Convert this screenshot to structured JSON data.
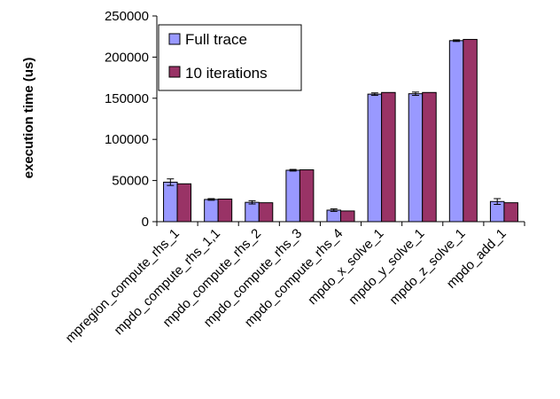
{
  "chart_data": {
    "type": "bar",
    "title": "",
    "xlabel": "",
    "ylabel": "execution time (us)",
    "ylim": [
      0,
      250000
    ],
    "yticks": [
      0,
      50000,
      100000,
      150000,
      200000,
      250000
    ],
    "grid": false,
    "legend_position": "top-left",
    "categories": [
      "mpregion_compute_rhs_1",
      "mpdo_compute_rhs_1,1",
      "mpdo_compute_rhs_2",
      "mpdo_compute_rhs_3",
      "mpdo_compute_rhs_4",
      "mpdo_x_solve_1",
      "mpdo_y_solve_1",
      "mpdo_z_solve_1",
      "mpdo_add_1"
    ],
    "series": [
      {
        "name": "Full trace",
        "color": "#9999ff",
        "values": [
          48000,
          27000,
          23500,
          62500,
          14000,
          155000,
          155500,
          220000,
          24500
        ],
        "errors": [
          4000,
          1000,
          2000,
          1000,
          1500,
          1500,
          2000,
          1000,
          3500
        ]
      },
      {
        "name": "10 iterations",
        "color": "#993366",
        "values": [
          46000,
          27500,
          23000,
          63000,
          13000,
          157000,
          157000,
          221500,
          23000
        ],
        "errors": [
          0,
          0,
          0,
          0,
          0,
          0,
          0,
          0,
          0
        ]
      }
    ]
  }
}
